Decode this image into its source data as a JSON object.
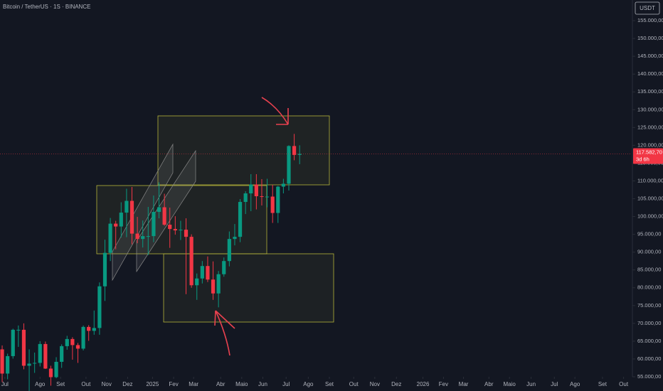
{
  "chart_data": {
    "type": "candlestick",
    "title": "Bitcoin / TetherUS · 1S · BINANCE",
    "currency": "USDT",
    "up_color": "#089981",
    "down_color": "#f23645",
    "grid": false,
    "ylim": [
      55000,
      160800
    ],
    "xlim": [
      -0.4,
      116.4
    ],
    "yticks": [
      {
        "value": 55000,
        "label": "55.000,00"
      },
      {
        "value": 60000,
        "label": "60.000,00"
      },
      {
        "value": 65000,
        "label": "65.000,00"
      },
      {
        "value": 70000,
        "label": "70.000,00"
      },
      {
        "value": 75000,
        "label": "75.000,00"
      },
      {
        "value": 80000,
        "label": "80.000,00"
      },
      {
        "value": 85000,
        "label": "85.000,00"
      },
      {
        "value": 90000,
        "label": "90.000,00"
      },
      {
        "value": 95000,
        "label": "95.000,00"
      },
      {
        "value": 100000,
        "label": "100.000,00"
      },
      {
        "value": 105000,
        "label": "105.000,00"
      },
      {
        "value": 110000,
        "label": "110.000,00"
      },
      {
        "value": 115000,
        "label": "115.000,00"
      },
      {
        "value": 120000,
        "label": "120.000,00"
      },
      {
        "value": 125000,
        "label": "125.000,00"
      },
      {
        "value": 130000,
        "label": "130.000,00"
      },
      {
        "value": 135000,
        "label": "135.000,00"
      },
      {
        "value": 140000,
        "label": "140.000,00"
      },
      {
        "value": 145000,
        "label": "145.000,00"
      },
      {
        "value": 150000,
        "label": "150.000,00"
      },
      {
        "value": 155000,
        "label": "155.000,00"
      }
    ],
    "xticks": [
      {
        "value": 0.5,
        "label": "Jul"
      },
      {
        "value": 7,
        "label": "Ago"
      },
      {
        "value": 10.8,
        "label": "Set"
      },
      {
        "value": 15.5,
        "label": "Out"
      },
      {
        "value": 19.3,
        "label": "Nov"
      },
      {
        "value": 23.2,
        "label": "Dez"
      },
      {
        "value": 27.8,
        "label": "2025"
      },
      {
        "value": 31.7,
        "label": "Fev"
      },
      {
        "value": 35.4,
        "label": "Mar"
      },
      {
        "value": 40.4,
        "label": "Abr"
      },
      {
        "value": 44.3,
        "label": "Maio"
      },
      {
        "value": 48.2,
        "label": "Jun"
      },
      {
        "value": 52.5,
        "label": "Jul"
      },
      {
        "value": 56.6,
        "label": "Ago"
      },
      {
        "value": 60.5,
        "label": "Set"
      },
      {
        "value": 65,
        "label": "Out"
      },
      {
        "value": 68.9,
        "label": "Nov"
      },
      {
        "value": 72.9,
        "label": "Dez"
      },
      {
        "value": 77.8,
        "label": "2026"
      },
      {
        "value": 81.6,
        "label": "Fev"
      },
      {
        "value": 85.3,
        "label": "Mar"
      },
      {
        "value": 90,
        "label": "Abr"
      },
      {
        "value": 93.8,
        "label": "Maio"
      },
      {
        "value": 97.8,
        "label": "Jun"
      },
      {
        "value": 102.1,
        "label": "Jul"
      },
      {
        "value": 105.9,
        "label": "Ago"
      },
      {
        "value": 111,
        "label": "Set"
      },
      {
        "value": 114.9,
        "label": "Out"
      }
    ],
    "open": [
      62700,
      55900,
      60800,
      68200,
      68200,
      58100,
      58700,
      58900,
      64200,
      57300,
      54900,
      59200,
      63600,
      65600,
      63900,
      62900,
      69000,
      67900,
      68700,
      80400,
      89800,
      98000,
      97200,
      101100,
      104400,
      95200,
      93700,
      94500,
      94500,
      101300,
      102600,
      97700,
      96500,
      96100,
      96300,
      94300,
      80700,
      82600,
      86100,
      82300,
      78400,
      83800,
      87500,
      93700,
      94300,
      104100,
      106500,
      109000,
      105700,
      105600,
      105600,
      101000,
      108400,
      109200,
      119800,
      117300
    ],
    "high": [
      63800,
      61500,
      68500,
      69400,
      70000,
      62700,
      61800,
      65000,
      64900,
      58100,
      60500,
      64100,
      66500,
      66100,
      64500,
      69400,
      69500,
      73600,
      81500,
      93500,
      99600,
      98800,
      104000,
      107800,
      108300,
      99900,
      98900,
      102700,
      105900,
      109600,
      106400,
      102500,
      100100,
      98800,
      99500,
      95000,
      84000,
      87500,
      88800,
      87400,
      84700,
      88500,
      95800,
      97900,
      104900,
      107100,
      111900,
      111900,
      110500,
      110600,
      108900,
      108600,
      110600,
      120000,
      123200,
      120000
    ],
    "low": [
      53500,
      54300,
      60100,
      63400,
      57100,
      49000,
      56100,
      57900,
      57200,
      52500,
      54600,
      57500,
      62600,
      59800,
      58900,
      62400,
      65100,
      66800,
      66800,
      76300,
      87500,
      90800,
      94100,
      94200,
      92200,
      92500,
      91300,
      89200,
      92800,
      99500,
      97400,
      91200,
      94900,
      93400,
      78200,
      80000,
      76600,
      81200,
      81600,
      76600,
      74500,
      83100,
      86000,
      91900,
      92800,
      100700,
      101500,
      102000,
      103100,
      102600,
      98200,
      98200,
      106500,
      107300,
      115800,
      114700
    ],
    "close": [
      55900,
      60800,
      68200,
      68200,
      58100,
      58700,
      58900,
      64200,
      57300,
      54900,
      59200,
      63600,
      65600,
      63900,
      62900,
      69000,
      67900,
      68700,
      80400,
      89800,
      98000,
      97200,
      101100,
      104400,
      95200,
      93700,
      94500,
      94500,
      101300,
      102600,
      97700,
      96500,
      96100,
      96300,
      94300,
      80700,
      82600,
      86100,
      82300,
      78400,
      83800,
      87500,
      93700,
      94300,
      104100,
      106500,
      109000,
      105700,
      105600,
      105600,
      101000,
      108400,
      109200,
      119800,
      117300,
      117582.7
    ],
    "last_price": {
      "value": 117582.7,
      "label": "117.582,70"
    },
    "countdown": "3d 6h"
  }
}
